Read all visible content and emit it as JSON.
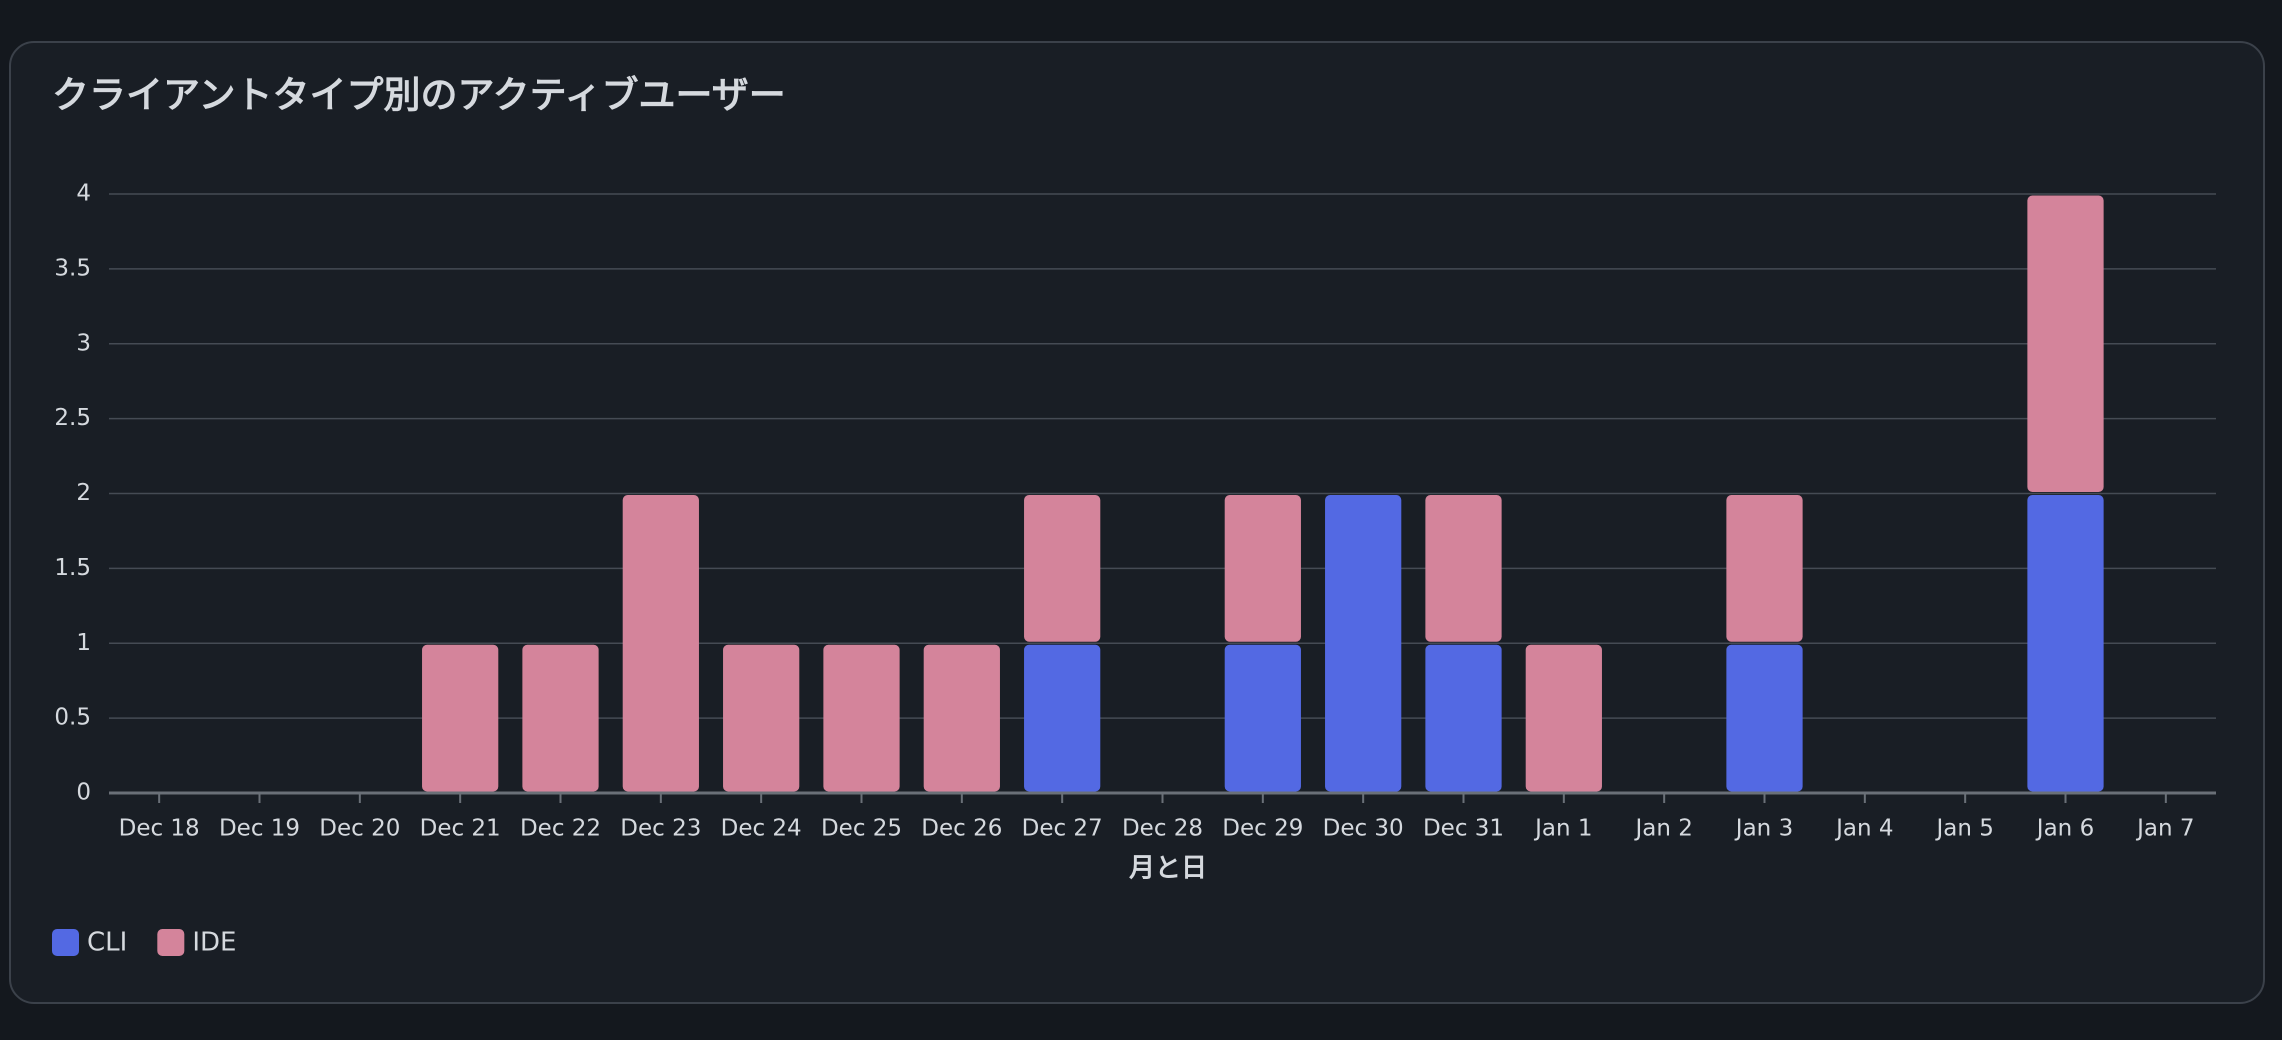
{
  "chart_data": {
    "type": "stacked-bar",
    "title": "クライアントタイプ別のアクティブユーザー",
    "x_label": "月と日",
    "categories": [
      "Dec 18",
      "Dec 19",
      "Dec 20",
      "Dec 21",
      "Dec 22",
      "Dec 23",
      "Dec 24",
      "Dec 25",
      "Dec 26",
      "Dec 27",
      "Dec 28",
      "Dec 29",
      "Dec 30",
      "Dec 31",
      "Jan 1",
      "Jan 2",
      "Jan 3",
      "Jan 4",
      "Jan 5",
      "Jan 6",
      "Jan 7"
    ],
    "series": [
      {
        "name": "CLI",
        "color": "#5369e3",
        "values": [
          0,
          0,
          0,
          0,
          0,
          0,
          0,
          0,
          0,
          1,
          0,
          1,
          2,
          1,
          0,
          0,
          1,
          0,
          0,
          2,
          0
        ]
      },
      {
        "name": "IDE",
        "color": "#d4849b",
        "values": [
          0,
          0,
          0,
          1,
          1,
          2,
          1,
          1,
          1,
          1,
          0,
          1,
          0,
          1,
          1,
          0,
          1,
          0,
          0,
          2,
          0
        ]
      }
    ],
    "ylim": [
      0,
      4
    ],
    "yticks": [
      0,
      0.5,
      1,
      1.5,
      2,
      2.5,
      3,
      3.5,
      4
    ],
    "grid": true,
    "legend": "bottom-left"
  }
}
